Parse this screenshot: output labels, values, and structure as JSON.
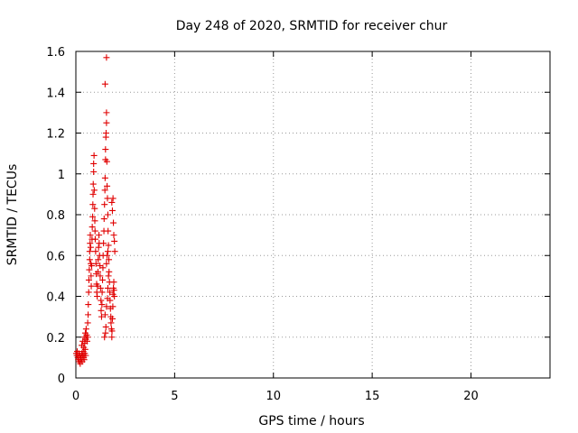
{
  "chart_data": {
    "type": "scatter",
    "title": "Day 248 of 2020, SRMTID for receiver chur",
    "xlabel": "GPS time / hours",
    "ylabel": "SRMTID / TECUs",
    "xlim": [
      0,
      24
    ],
    "ylim": [
      0,
      1.6
    ],
    "xticks": [
      0,
      5,
      10,
      15,
      20
    ],
    "yticks": [
      0,
      0.2,
      0.4,
      0.6,
      0.8,
      1,
      1.2,
      1.4,
      1.6
    ],
    "ytick_labels": [
      "0",
      "0.2",
      "0.4",
      "0.6",
      "0.8",
      "1",
      "1.2",
      "1.4",
      "1.6"
    ],
    "grid": true,
    "marker": "+",
    "color": "#e00000",
    "series": [
      {
        "name": "SRMTID",
        "points": [
          [
            0.02,
            0.12
          ],
          [
            0.05,
            0.11
          ],
          [
            0.07,
            0.13
          ],
          [
            0.1,
            0.1
          ],
          [
            0.12,
            0.09
          ],
          [
            0.15,
            0.12
          ],
          [
            0.17,
            0.08
          ],
          [
            0.2,
            0.11
          ],
          [
            0.22,
            0.07
          ],
          [
            0.25,
            0.1
          ],
          [
            0.27,
            0.09
          ],
          [
            0.3,
            0.12
          ],
          [
            0.32,
            0.08
          ],
          [
            0.35,
            0.11
          ],
          [
            0.37,
            0.13
          ],
          [
            0.4,
            0.1
          ],
          [
            0.42,
            0.09
          ],
          [
            0.45,
            0.12
          ],
          [
            0.47,
            0.14
          ],
          [
            0.5,
            0.11
          ],
          [
            0.3,
            0.16
          ],
          [
            0.35,
            0.18
          ],
          [
            0.4,
            0.15
          ],
          [
            0.42,
            0.2
          ],
          [
            0.45,
            0.17
          ],
          [
            0.48,
            0.22
          ],
          [
            0.5,
            0.19
          ],
          [
            0.52,
            0.24
          ],
          [
            0.55,
            0.21
          ],
          [
            0.57,
            0.18
          ],
          [
            0.6,
            0.2
          ],
          [
            0.6,
            0.27
          ],
          [
            0.62,
            0.31
          ],
          [
            0.63,
            0.36
          ],
          [
            0.65,
            0.42
          ],
          [
            0.66,
            0.48
          ],
          [
            0.68,
            0.53
          ],
          [
            0.7,
            0.58
          ],
          [
            0.7,
            0.62
          ],
          [
            0.72,
            0.66
          ],
          [
            0.73,
            0.7
          ],
          [
            0.75,
            0.64
          ],
          [
            0.76,
            0.56
          ],
          [
            0.77,
            0.5
          ],
          [
            0.78,
            0.45
          ],
          [
            0.8,
            0.55
          ],
          [
            0.82,
            0.68
          ],
          [
            0.83,
            0.74
          ],
          [
            0.85,
            0.79
          ],
          [
            0.86,
            0.85
          ],
          [
            0.87,
            0.9
          ],
          [
            0.88,
            0.95
          ],
          [
            0.9,
            1.01
          ],
          [
            0.9,
            1.05
          ],
          [
            0.92,
            1.09
          ],
          [
            0.93,
            0.92
          ],
          [
            0.95,
            0.83
          ],
          [
            0.96,
            0.77
          ],
          [
            0.97,
            0.72
          ],
          [
            0.98,
            0.68
          ],
          [
            1.0,
            0.62
          ],
          [
            1.02,
            0.56
          ],
          [
            1.03,
            0.51
          ],
          [
            1.05,
            0.46
          ],
          [
            1.06,
            0.42
          ],
          [
            1.08,
            0.4
          ],
          [
            1.1,
            0.45
          ],
          [
            1.12,
            0.52
          ],
          [
            1.13,
            0.58
          ],
          [
            1.15,
            0.64
          ],
          [
            1.17,
            0.7
          ],
          [
            1.18,
            0.66
          ],
          [
            1.2,
            0.6
          ],
          [
            1.22,
            0.55
          ],
          [
            1.23,
            0.5
          ],
          [
            1.25,
            0.44
          ],
          [
            1.27,
            0.38
          ],
          [
            1.28,
            0.33
          ],
          [
            1.3,
            0.3
          ],
          [
            1.32,
            0.36
          ],
          [
            1.33,
            0.42
          ],
          [
            1.35,
            0.48
          ],
          [
            1.37,
            0.54
          ],
          [
            1.38,
            0.6
          ],
          [
            1.4,
            0.66
          ],
          [
            1.42,
            0.72
          ],
          [
            1.43,
            0.78
          ],
          [
            1.45,
            0.85
          ],
          [
            1.47,
            0.92
          ],
          [
            1.48,
            0.98
          ],
          [
            1.5,
            1.07
          ],
          [
            1.5,
            1.12
          ],
          [
            1.52,
            1.18
          ],
          [
            1.53,
            1.2
          ],
          [
            1.55,
            1.25
          ],
          [
            1.55,
            1.3
          ],
          [
            1.48,
            1.44
          ],
          [
            1.55,
            1.57
          ],
          [
            1.57,
            1.06
          ],
          [
            1.58,
            0.94
          ],
          [
            1.6,
            0.88
          ],
          [
            1.62,
            0.8
          ],
          [
            1.63,
            0.72
          ],
          [
            1.65,
            0.65
          ],
          [
            1.67,
            0.58
          ],
          [
            1.68,
            0.52
          ],
          [
            1.7,
            0.47
          ],
          [
            1.72,
            0.42
          ],
          [
            1.73,
            0.38
          ],
          [
            1.75,
            0.34
          ],
          [
            1.77,
            0.3
          ],
          [
            1.78,
            0.27
          ],
          [
            1.8,
            0.24
          ],
          [
            1.82,
            0.2
          ],
          [
            1.83,
            0.23
          ],
          [
            1.85,
            0.29
          ],
          [
            1.87,
            0.35
          ],
          [
            1.88,
            0.41
          ],
          [
            1.9,
            0.44
          ],
          [
            1.92,
            0.47
          ],
          [
            1.93,
            0.43
          ],
          [
            1.95,
            0.4
          ],
          [
            1.82,
            0.86
          ],
          [
            1.85,
            0.82
          ],
          [
            1.88,
            0.88
          ],
          [
            1.9,
            0.76
          ],
          [
            1.92,
            0.7
          ],
          [
            1.95,
            0.67
          ],
          [
            1.97,
            0.62
          ],
          [
            1.45,
            0.2
          ],
          [
            1.5,
            0.22
          ],
          [
            1.52,
            0.25
          ],
          [
            1.48,
            0.31
          ],
          [
            1.55,
            0.35
          ],
          [
            1.6,
            0.39
          ],
          [
            1.62,
            0.44
          ],
          [
            1.65,
            0.5
          ],
          [
            1.55,
            0.56
          ],
          [
            1.58,
            0.6
          ],
          [
            1.62,
            0.62
          ]
        ]
      }
    ]
  }
}
